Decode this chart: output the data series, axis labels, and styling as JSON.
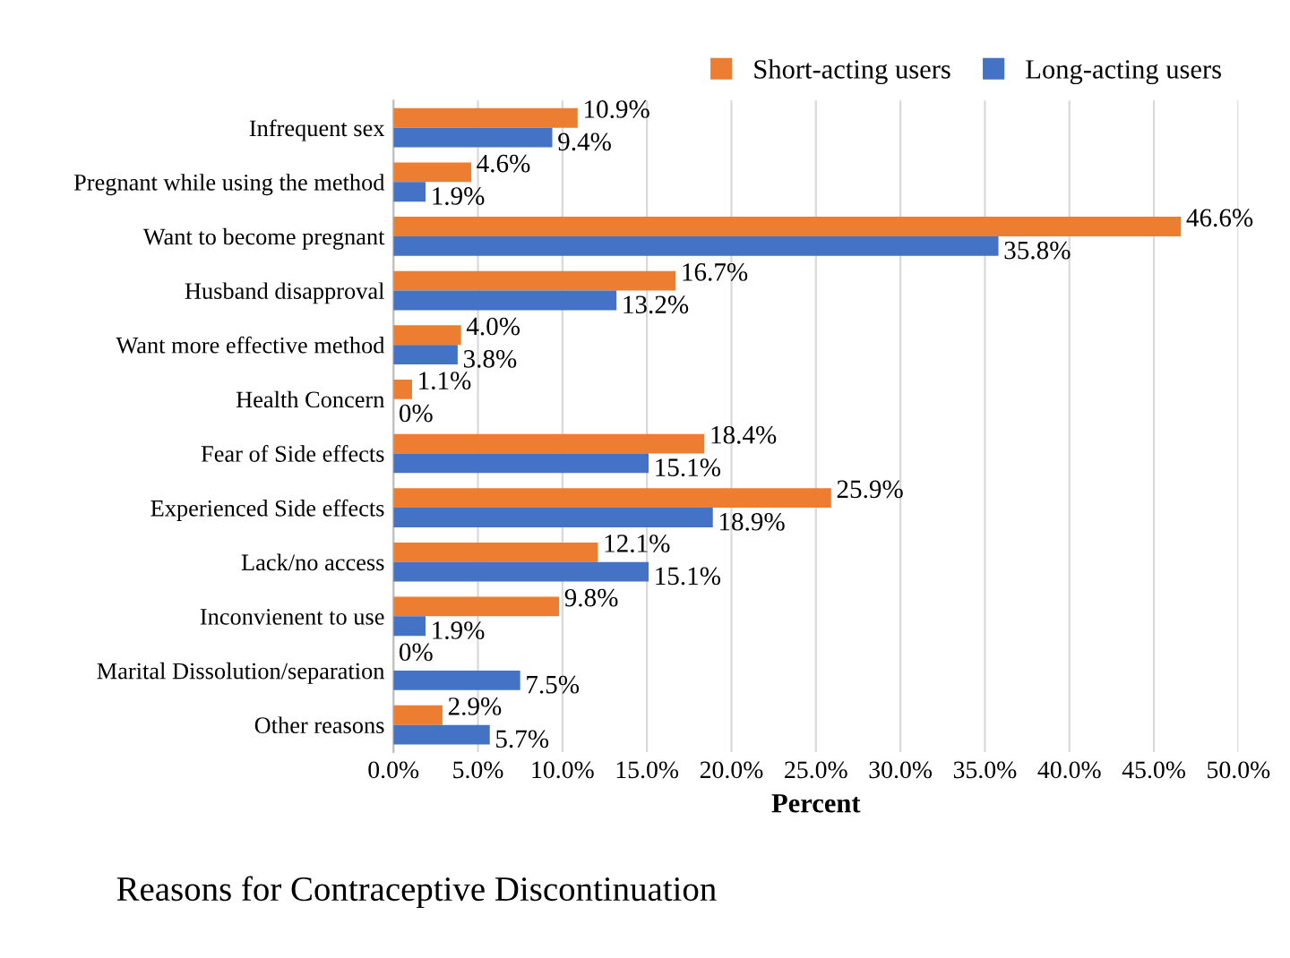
{
  "chart_data": {
    "type": "bar",
    "orientation": "horizontal",
    "title": "Reasons for Contraceptive Discontinuation",
    "xlabel": "Percent",
    "categories": [
      "Infrequent sex",
      "Pregnant while using the method",
      "Want to become pregnant",
      "Husband disapproval",
      "Want more effective method",
      "Health Concern",
      "Fear of Side effects",
      "Experienced Side effects",
      "Lack/no access",
      "Inconvienent to use",
      "Marital Dissolution/separation",
      "Other reasons"
    ],
    "series": [
      {
        "name": "Short-acting users",
        "color": "#ed7d31",
        "values": [
          10.9,
          4.6,
          46.6,
          16.7,
          4.0,
          1.1,
          18.4,
          25.9,
          12.1,
          9.8,
          0,
          2.9
        ],
        "value_labels": [
          "10.9%",
          "4.6%",
          "46.6%",
          "16.7%",
          "4.0%",
          "1.1%",
          "18.4%",
          "25.9%",
          "12.1%",
          "9.8%",
          "0%",
          "2.9%"
        ]
      },
      {
        "name": "Long-acting users",
        "color": "#4472c4",
        "values": [
          9.4,
          1.9,
          35.8,
          13.2,
          3.8,
          0,
          15.1,
          18.9,
          15.1,
          1.9,
          7.5,
          5.7
        ],
        "value_labels": [
          "9.4%",
          "1.9%",
          "35.8%",
          "13.2%",
          "3.8%",
          "0%",
          "15.1%",
          "18.9%",
          "15.1%",
          "1.9%",
          "7.5%",
          "5.7%"
        ]
      }
    ],
    "xlim": [
      0,
      50
    ],
    "xticks": [
      {
        "value": 0,
        "label": "0.0%"
      },
      {
        "value": 5,
        "label": "5.0%"
      },
      {
        "value": 10,
        "label": "10.0%"
      },
      {
        "value": 15,
        "label": "15.0%"
      },
      {
        "value": 20,
        "label": "20.0%"
      },
      {
        "value": 25,
        "label": "25.0%"
      },
      {
        "value": 30,
        "label": "30.0%"
      },
      {
        "value": 35,
        "label": "35.0%"
      },
      {
        "value": 40,
        "label": "40.0%"
      },
      {
        "value": 45,
        "label": "45.0%"
      },
      {
        "value": 50,
        "label": "50.0%"
      }
    ],
    "grid": "x",
    "legend": "top right"
  }
}
